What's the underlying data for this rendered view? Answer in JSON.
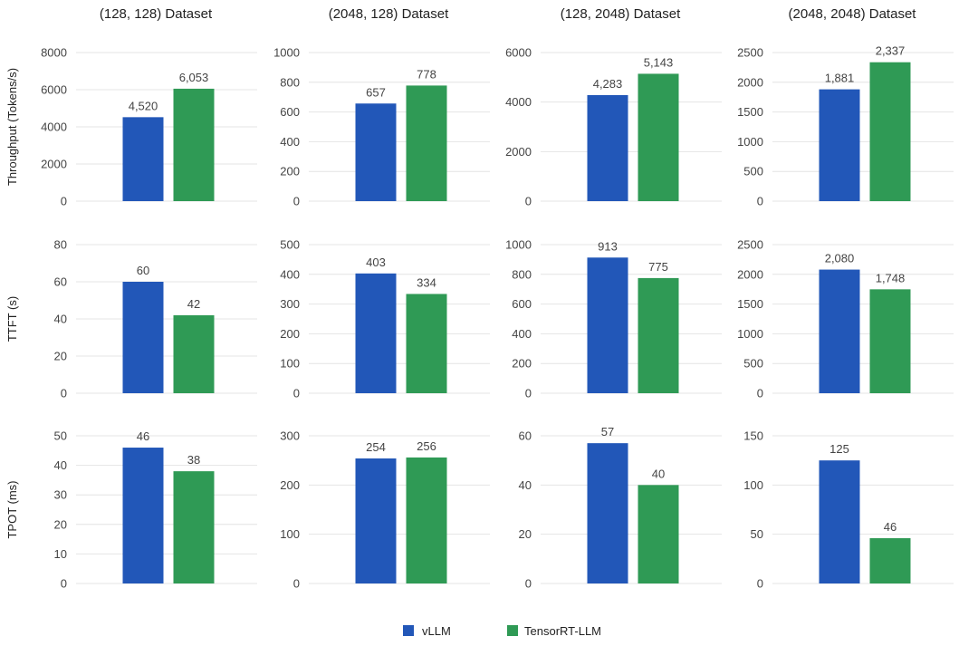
{
  "colors": {
    "vllm": "#2257b8",
    "trt": "#2f9a55",
    "grid": "#e4e4e4"
  },
  "legend": {
    "vllm": "vLLM",
    "trt": "TensorRT-LLM"
  },
  "chart_data": {
    "type": "bar",
    "series_names": [
      "vLLM",
      "TensorRT-LLM"
    ],
    "columns": [
      "(128, 128) Dataset",
      "(2048, 128) Dataset",
      "(128, 2048) Dataset",
      "(2048, 2048) Dataset"
    ],
    "rows": [
      {
        "ylabel": "Throughput (Tokens/s)",
        "panels": [
          {
            "ylim": [
              0,
              8000
            ],
            "ticks": [
              0,
              2000,
              4000,
              6000,
              8000
            ],
            "values": [
              4520,
              6053
            ],
            "labels": [
              "4,520",
              "6,053"
            ]
          },
          {
            "ylim": [
              0,
              1000
            ],
            "ticks": [
              0,
              200,
              400,
              600,
              800,
              1000
            ],
            "values": [
              657,
              778
            ],
            "labels": [
              "657",
              "778"
            ]
          },
          {
            "ylim": [
              0,
              6000
            ],
            "ticks": [
              0,
              2000,
              4000,
              6000
            ],
            "values": [
              4283,
              5143
            ],
            "labels": [
              "4,283",
              "5,143"
            ]
          },
          {
            "ylim": [
              0,
              2500
            ],
            "ticks": [
              0,
              500,
              1000,
              1500,
              2000,
              2500
            ],
            "values": [
              1881,
              2337
            ],
            "labels": [
              "1,881",
              "2,337"
            ]
          }
        ]
      },
      {
        "ylabel": "TTFT (s)",
        "panels": [
          {
            "ylim": [
              0,
              80
            ],
            "ticks": [
              0,
              20,
              40,
              60,
              80
            ],
            "values": [
              60,
              42
            ],
            "labels": [
              "60",
              "42"
            ]
          },
          {
            "ylim": [
              0,
              500
            ],
            "ticks": [
              0,
              100,
              200,
              300,
              400,
              500
            ],
            "values": [
              403,
              334
            ],
            "labels": [
              "403",
              "334"
            ]
          },
          {
            "ylim": [
              0,
              1000
            ],
            "ticks": [
              0,
              200,
              400,
              600,
              800,
              1000
            ],
            "values": [
              913,
              775
            ],
            "labels": [
              "913",
              "775"
            ]
          },
          {
            "ylim": [
              0,
              2500
            ],
            "ticks": [
              0,
              500,
              1000,
              1500,
              2000,
              2500
            ],
            "values": [
              2080,
              1748
            ],
            "labels": [
              "2,080",
              "1,748"
            ]
          }
        ]
      },
      {
        "ylabel": "TPOT (ms)",
        "panels": [
          {
            "ylim": [
              0,
              50
            ],
            "ticks": [
              0,
              10,
              20,
              30,
              40,
              50
            ],
            "values": [
              46,
              38
            ],
            "labels": [
              "46",
              "38"
            ]
          },
          {
            "ylim": [
              0,
              300
            ],
            "ticks": [
              0,
              100,
              200,
              300
            ],
            "values": [
              254,
              256
            ],
            "labels": [
              "254",
              "256"
            ]
          },
          {
            "ylim": [
              0,
              60
            ],
            "ticks": [
              0,
              20,
              40,
              60
            ],
            "values": [
              57,
              40
            ],
            "labels": [
              "57",
              "40"
            ]
          },
          {
            "ylim": [
              0,
              150
            ],
            "ticks": [
              0,
              50,
              100,
              150
            ],
            "values": [
              125,
              46
            ],
            "labels": [
              "125",
              "46"
            ]
          }
        ]
      }
    ]
  }
}
